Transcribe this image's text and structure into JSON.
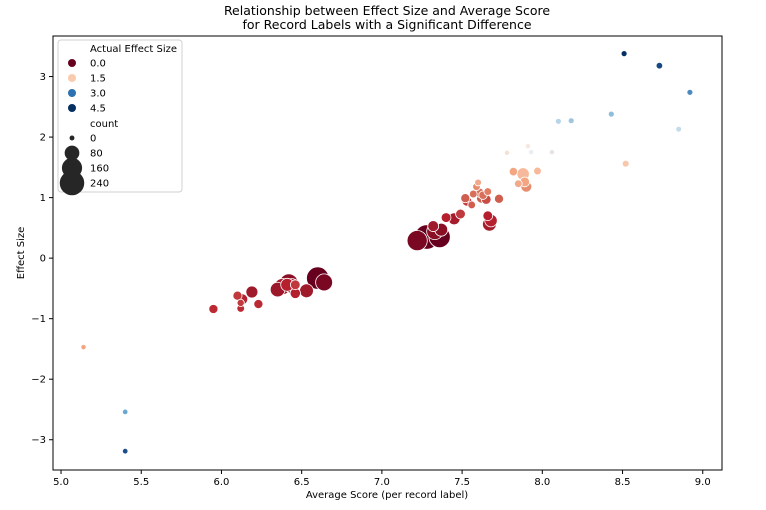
{
  "chart_data": {
    "type": "scatter",
    "title": "Relationship between Effect Size and Average Score",
    "subtitle": "for Record Labels with a Significant Difference",
    "xlabel": "Average Score (per record label)",
    "ylabel": "Effect Size",
    "xlim": [
      4.95,
      9.12
    ],
    "ylim": [
      -3.5,
      3.67
    ],
    "xticks": [
      "5.0",
      "5.5",
      "6.0",
      "6.5",
      "7.0",
      "7.5",
      "8.0",
      "8.5",
      "9.0"
    ],
    "yticks": [
      "-3",
      "-2",
      "-1",
      "0",
      "1",
      "2",
      "3"
    ],
    "grid": false,
    "legend_position": "top-left",
    "hue": {
      "title": "Actual Effect Size",
      "entries": [
        {
          "label": "0.0",
          "color": "#67001f"
        },
        {
          "label": "1.5",
          "color": "#fbcbae"
        },
        {
          "label": "3.0",
          "color": "#2c72b0"
        },
        {
          "label": "4.5",
          "color": "#053061"
        }
      ]
    },
    "size": {
      "title": "count",
      "entries": [
        {
          "label": "0",
          "count": 0
        },
        {
          "label": "80",
          "count": 80
        },
        {
          "label": "160",
          "count": 160
        },
        {
          "label": "240",
          "count": 240
        }
      ]
    },
    "points": [
      {
        "x": 5.14,
        "y": -1.47,
        "count": 2,
        "color": "#f4a582"
      },
      {
        "x": 5.4,
        "y": -2.54,
        "count": 3,
        "color": "#6aa8d0"
      },
      {
        "x": 5.4,
        "y": -3.19,
        "count": 3,
        "color": "#1d4e8c"
      },
      {
        "x": 5.95,
        "y": -0.84,
        "count": 25,
        "color": "#bb2a33"
      },
      {
        "x": 6.1,
        "y": -0.62,
        "count": 25,
        "color": "#c0393c"
      },
      {
        "x": 6.12,
        "y": -0.74,
        "count": 12,
        "color": "#c0393c"
      },
      {
        "x": 6.12,
        "y": -0.83,
        "count": 15,
        "color": "#bb2a33"
      },
      {
        "x": 6.13,
        "y": -0.68,
        "count": 40,
        "color": "#b51f2e"
      },
      {
        "x": 6.19,
        "y": -0.56,
        "count": 50,
        "color": "#9f1a2b"
      },
      {
        "x": 6.23,
        "y": -0.76,
        "count": 25,
        "color": "#bb2a33"
      },
      {
        "x": 6.35,
        "y": -0.52,
        "count": 80,
        "color": "#9b1729"
      },
      {
        "x": 6.38,
        "y": -0.47,
        "count": 100,
        "color": "#a51d2d"
      },
      {
        "x": 6.41,
        "y": -0.44,
        "count": 60,
        "color": "#b51f2e"
      },
      {
        "x": 6.42,
        "y": -0.41,
        "count": 130,
        "color": "#8a0f24"
      },
      {
        "x": 6.44,
        "y": -0.46,
        "count": 80,
        "color": "#a51d2d"
      },
      {
        "x": 6.46,
        "y": -0.44,
        "count": 30,
        "color": "#c0393c"
      },
      {
        "x": 6.46,
        "y": -0.58,
        "count": 35,
        "color": "#b51f2e"
      },
      {
        "x": 6.53,
        "y": -0.54,
        "count": 70,
        "color": "#9f1a2b"
      },
      {
        "x": 6.6,
        "y": -0.33,
        "count": 200,
        "color": "#67001f"
      },
      {
        "x": 6.64,
        "y": -0.4,
        "count": 110,
        "color": "#7a0822"
      },
      {
        "x": 7.22,
        "y": 0.29,
        "count": 160,
        "color": "#7a0822"
      },
      {
        "x": 7.28,
        "y": 0.35,
        "count": 240,
        "color": "#67001f"
      },
      {
        "x": 7.32,
        "y": 0.53,
        "count": 40,
        "color": "#9f1a2b"
      },
      {
        "x": 7.33,
        "y": 0.44,
        "count": 100,
        "color": "#8a0f24"
      },
      {
        "x": 7.36,
        "y": 0.35,
        "count": 180,
        "color": "#67001f"
      },
      {
        "x": 7.37,
        "y": 0.47,
        "count": 60,
        "color": "#8a0f24"
      },
      {
        "x": 7.4,
        "y": 0.67,
        "count": 30,
        "color": "#b51f2e"
      },
      {
        "x": 7.45,
        "y": 0.65,
        "count": 50,
        "color": "#a51d2d"
      },
      {
        "x": 7.49,
        "y": 0.73,
        "count": 30,
        "color": "#c0393c"
      },
      {
        "x": 7.52,
        "y": 0.99,
        "count": 25,
        "color": "#d05e4f"
      },
      {
        "x": 7.53,
        "y": 0.94,
        "count": 30,
        "color": "#c0393c"
      },
      {
        "x": 7.56,
        "y": 0.88,
        "count": 15,
        "color": "#d05e4f"
      },
      {
        "x": 7.57,
        "y": 1.06,
        "count": 15,
        "color": "#d86f5a"
      },
      {
        "x": 7.59,
        "y": 1.18,
        "count": 15,
        "color": "#e58d6e"
      },
      {
        "x": 7.6,
        "y": 1.25,
        "count": 10,
        "color": "#f0a98a"
      },
      {
        "x": 7.61,
        "y": 1.08,
        "count": 25,
        "color": "#d86f5a"
      },
      {
        "x": 7.62,
        "y": 0.99,
        "count": 30,
        "color": "#d05e4f"
      },
      {
        "x": 7.63,
        "y": 1.04,
        "count": 20,
        "color": "#d86f5a"
      },
      {
        "x": 7.65,
        "y": 0.97,
        "count": 30,
        "color": "#c84d45"
      },
      {
        "x": 7.66,
        "y": 1.1,
        "count": 15,
        "color": "#e27c62"
      },
      {
        "x": 7.66,
        "y": 0.7,
        "count": 30,
        "color": "#b51f2e"
      },
      {
        "x": 7.67,
        "y": 0.56,
        "count": 70,
        "color": "#a51d2d"
      },
      {
        "x": 7.68,
        "y": 0.62,
        "count": 55,
        "color": "#b51f2e"
      },
      {
        "x": 7.73,
        "y": 0.98,
        "count": 25,
        "color": "#d05e4f"
      },
      {
        "x": 7.78,
        "y": 1.74,
        "count": 2,
        "color": "#f2e3d6"
      },
      {
        "x": 7.82,
        "y": 1.43,
        "count": 20,
        "color": "#f4a582"
      },
      {
        "x": 7.85,
        "y": 1.23,
        "count": 15,
        "color": "#f0a98a"
      },
      {
        "x": 7.88,
        "y": 1.39,
        "count": 55,
        "color": "#f6b99b"
      },
      {
        "x": 7.89,
        "y": 1.26,
        "count": 30,
        "color": "#f4a582"
      },
      {
        "x": 7.9,
        "y": 1.18,
        "count": 40,
        "color": "#e58d6e"
      },
      {
        "x": 7.91,
        "y": 1.85,
        "count": 2,
        "color": "#f4e8e0"
      },
      {
        "x": 7.93,
        "y": 1.75,
        "count": 2,
        "color": "#e8eef2"
      },
      {
        "x": 7.97,
        "y": 1.44,
        "count": 15,
        "color": "#f6b99b"
      },
      {
        "x": 8.06,
        "y": 1.75,
        "count": 2,
        "color": "#eae4e0"
      },
      {
        "x": 8.1,
        "y": 2.26,
        "count": 5,
        "color": "#b7d4e8"
      },
      {
        "x": 8.18,
        "y": 2.27,
        "count": 5,
        "color": "#9fc6e0"
      },
      {
        "x": 8.43,
        "y": 2.38,
        "count": 5,
        "color": "#8dbedb"
      },
      {
        "x": 8.51,
        "y": 3.38,
        "count": 5,
        "color": "#053061"
      },
      {
        "x": 8.52,
        "y": 1.56,
        "count": 10,
        "color": "#f8c7ac"
      },
      {
        "x": 8.73,
        "y": 3.18,
        "count": 8,
        "color": "#174a82"
      },
      {
        "x": 8.85,
        "y": 2.13,
        "count": 4,
        "color": "#c4dcea"
      },
      {
        "x": 8.92,
        "y": 2.74,
        "count": 5,
        "color": "#4b89c0"
      }
    ]
  }
}
